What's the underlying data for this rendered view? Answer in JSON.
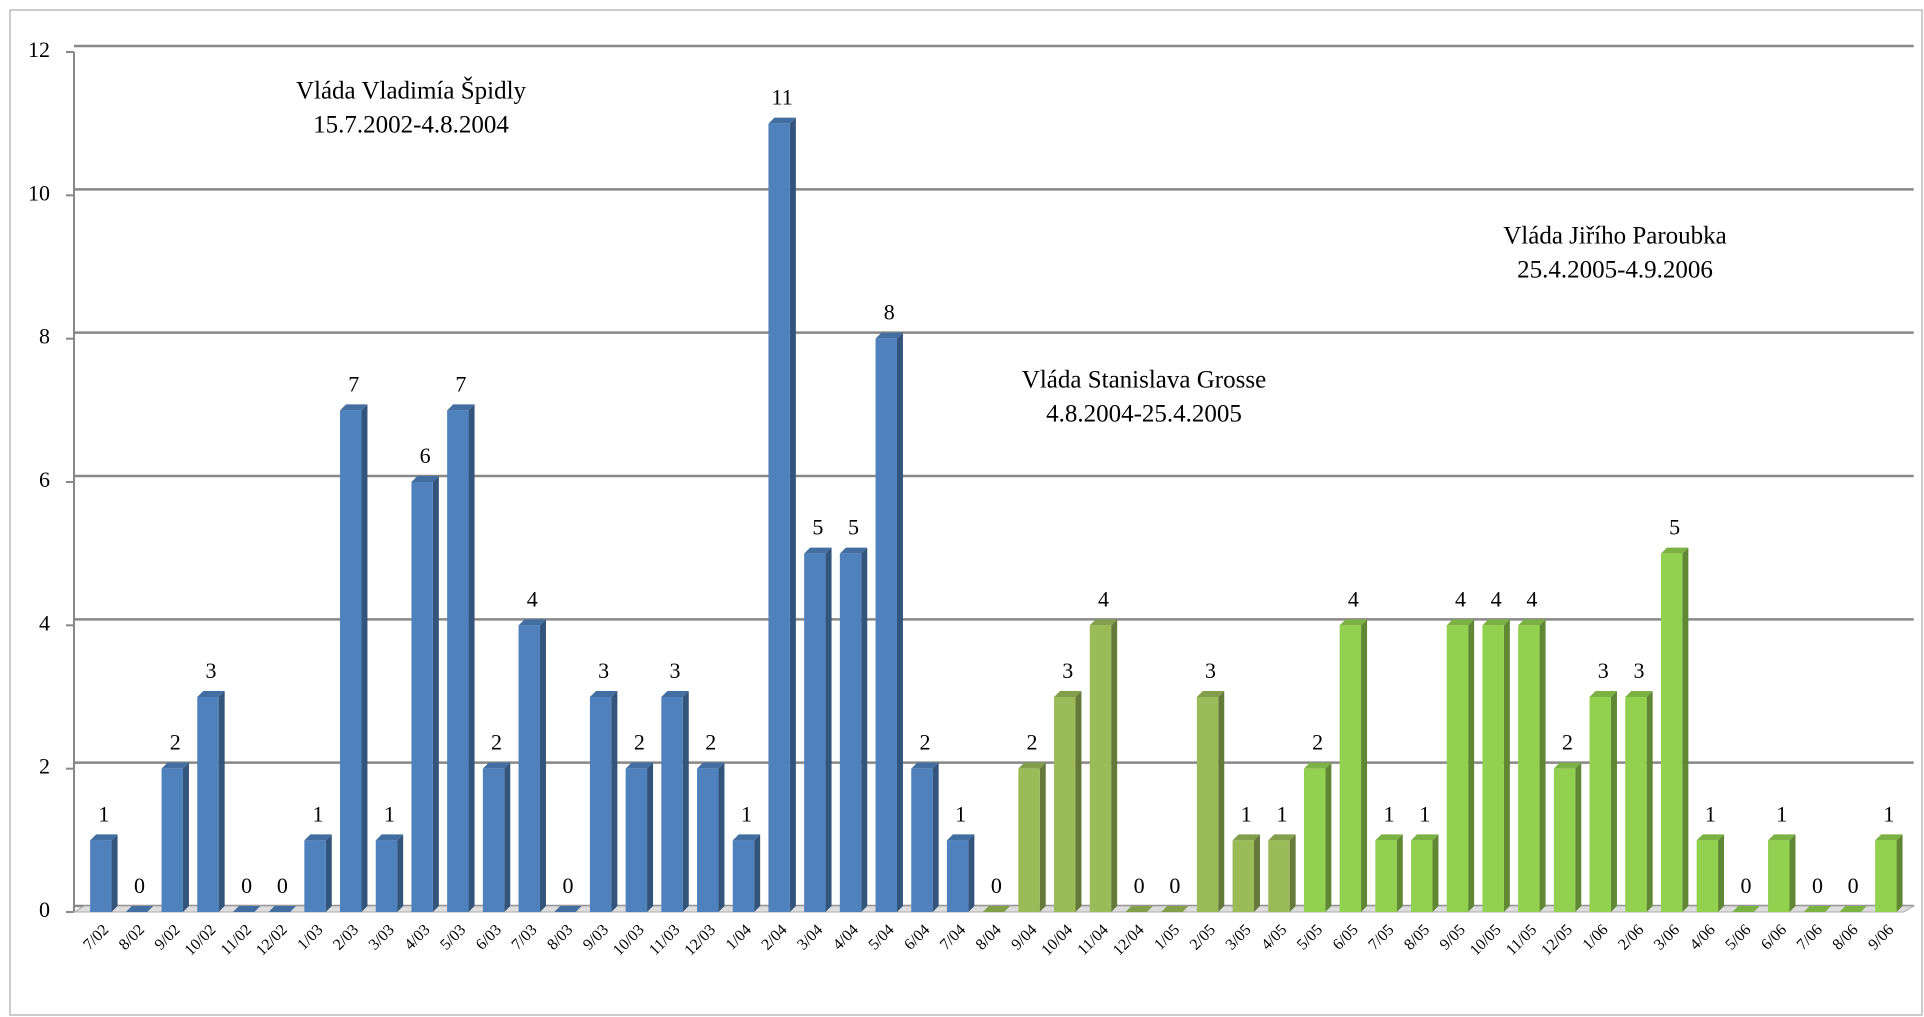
{
  "chart_data": {
    "type": "bar",
    "categories": [
      "7/02",
      "8/02",
      "9/02",
      "10/02",
      "11/02",
      "12/02",
      "1/03",
      "2/03",
      "3/03",
      "4/03",
      "5/03",
      "6/03",
      "7/03",
      "8/03",
      "9/03",
      "10/03",
      "11/03",
      "12/03",
      "1/04",
      "2/04",
      "3/04",
      "4/04",
      "5/04",
      "6/04",
      "7/04",
      "8/04",
      "9/04",
      "10/04",
      "11/04",
      "12/04",
      "1/05",
      "2/05",
      "3/05",
      "4/05",
      "5/05",
      "6/05",
      "7/05",
      "8/05",
      "9/05",
      "10/05",
      "11/05",
      "12/05",
      "1/06",
      "2/06",
      "3/06",
      "4/06",
      "5/06",
      "6/06",
      "7/06",
      "8/06",
      "9/06"
    ],
    "values": [
      1,
      0,
      2,
      3,
      0,
      0,
      1,
      7,
      1,
      6,
      7,
      2,
      4,
      0,
      3,
      2,
      3,
      2,
      1,
      11,
      5,
      5,
      8,
      2,
      1,
      0,
      2,
      3,
      4,
      0,
      0,
      3,
      1,
      1,
      2,
      4,
      1,
      1,
      4,
      4,
      4,
      2,
      3,
      3,
      5,
      1,
      0,
      1,
      0,
      0,
      1
    ],
    "colors": [
      "#4f81bd",
      "#4f81bd",
      "#4f81bd",
      "#4f81bd",
      "#4f81bd",
      "#4f81bd",
      "#4f81bd",
      "#4f81bd",
      "#4f81bd",
      "#4f81bd",
      "#4f81bd",
      "#4f81bd",
      "#4f81bd",
      "#4f81bd",
      "#4f81bd",
      "#4f81bd",
      "#4f81bd",
      "#4f81bd",
      "#4f81bd",
      "#4f81bd",
      "#4f81bd",
      "#4f81bd",
      "#4f81bd",
      "#4f81bd",
      "#4f81bd",
      "#9bbb59",
      "#9bbb59",
      "#9bbb59",
      "#9bbb59",
      "#9bbb59",
      "#9bbb59",
      "#9bbb59",
      "#9bbb59",
      "#9bbb59",
      "#92d050",
      "#92d050",
      "#92d050",
      "#92d050",
      "#92d050",
      "#92d050",
      "#92d050",
      "#92d050",
      "#92d050",
      "#92d050",
      "#92d050",
      "#92d050",
      "#92d050",
      "#92d050",
      "#92d050",
      "#92d050",
      "#92d050"
    ],
    "ylim": [
      0,
      12
    ],
    "yticks": [
      0,
      2,
      4,
      6,
      8,
      10,
      12
    ],
    "grid": true,
    "annotations": [
      [
        "Vláda Vladimía Špidly",
        "15.7.2002-4.8.2004"
      ],
      [
        "Vláda Stanislava Grosse",
        "4.8.2004-25.4.2005"
      ],
      [
        "Vláda Jiřího Paroubka",
        "25.4.2005-4.9.2006"
      ]
    ]
  }
}
